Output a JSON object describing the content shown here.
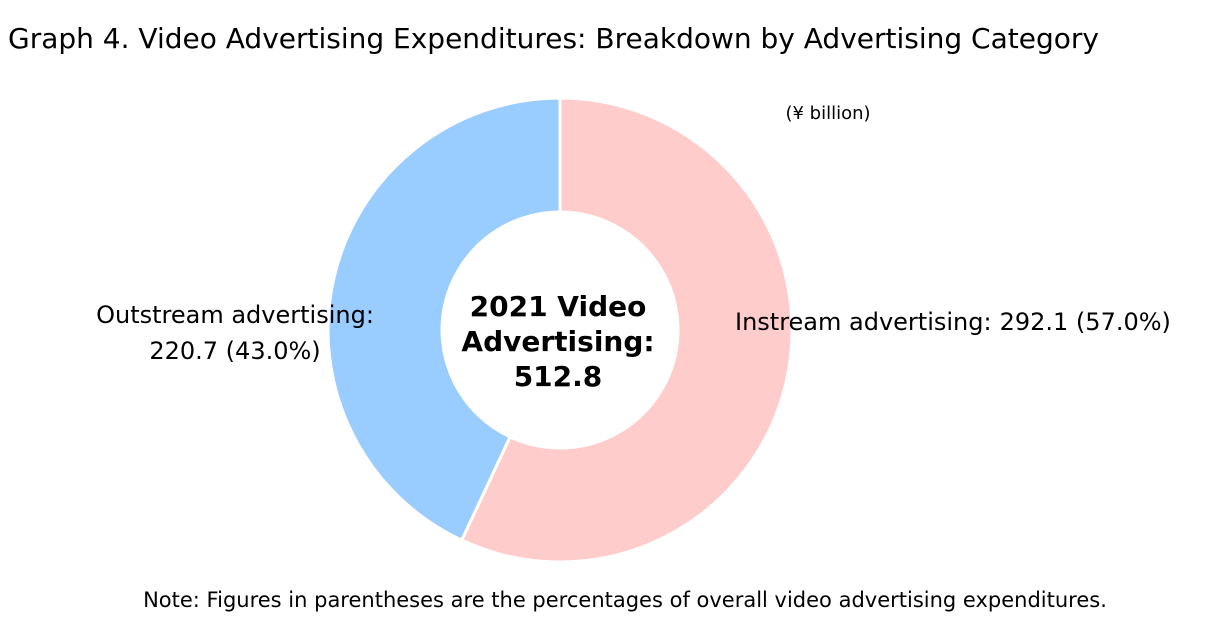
{
  "chart_data": {
    "type": "donut",
    "title": "Graph 4. Video Advertising Expenditures: Breakdown by Advertising Category",
    "unit": "(¥ billion)",
    "categories": [
      "Instream advertising:",
      "Outstream advertising:"
    ],
    "values": [
      292.1,
      220.7
    ],
    "value_labels": [
      "292.1 (57.0%)",
      "220.7 (43.0%)"
    ],
    "colors": [
      "#ffcccc",
      "#99ccff"
    ],
    "center_label": [
      "2021 Video",
      "Advertising:"
    ],
    "total": 512.8,
    "note": "Note: Figures in parentheses are the percentages of overall video advertising expenditures."
  }
}
